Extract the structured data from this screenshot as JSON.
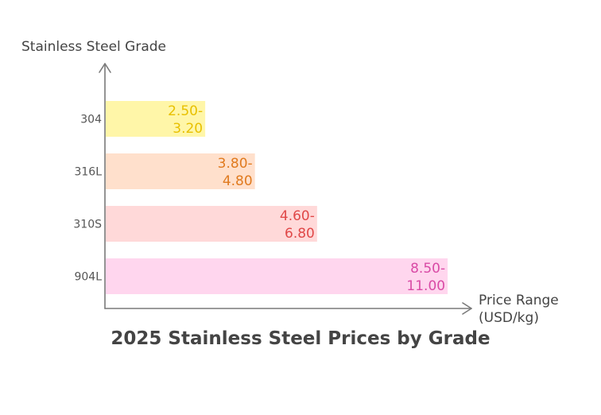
{
  "chart_data": {
    "type": "bar",
    "orientation": "horizontal",
    "title": "2025 Stainless Steel Prices by Grade",
    "xlabel": "Price Range (USD/kg)",
    "ylabel": "Stainless Steel Grade",
    "categories": [
      "304",
      "316L",
      "310S",
      "904L"
    ],
    "ranges": [
      [
        2.5,
        3.2
      ],
      [
        3.8,
        4.8
      ],
      [
        4.6,
        6.8
      ],
      [
        8.5,
        11.0
      ]
    ],
    "labels": [
      "2.50-3.20",
      "3.80-4.80",
      "4.60-6.80",
      "8.50-11.00"
    ],
    "xlim": [
      0,
      11.0
    ],
    "grid": false,
    "legend": "none",
    "colors": {
      "bars": [
        "#fff6a8",
        "#ffe0cc",
        "#ffd9d9",
        "#ffd6ee"
      ],
      "labels": [
        "#e8c000",
        "#e07a1f",
        "#e04848",
        "#d94aa5"
      ],
      "axis": "#7a7a7a",
      "text": "#444444"
    }
  }
}
